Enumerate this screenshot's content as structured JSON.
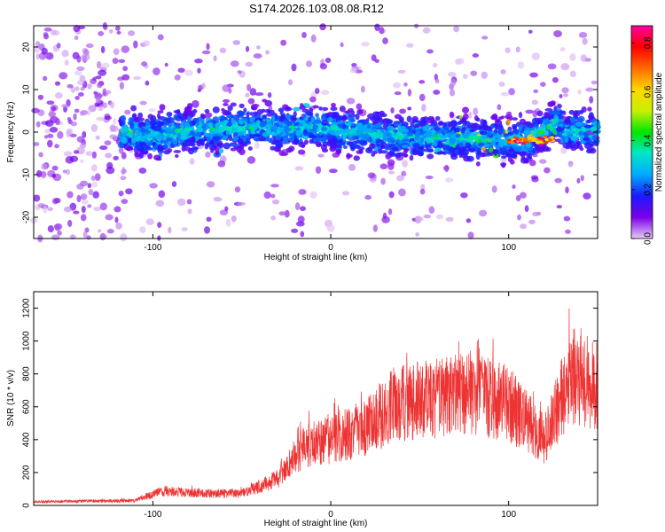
{
  "title": "S174.2026.103.08.08.R12",
  "chart_data": [
    {
      "type": "heatmap",
      "xlabel": "Height of straight line (km)",
      "ylabel": "Frequency (Hz)",
      "xlim": [
        -167,
        150
      ],
      "ylim": [
        -25,
        25
      ],
      "xticks": [
        -100,
        0,
        100
      ],
      "yticks": [
        -20,
        -10,
        0,
        10,
        20
      ],
      "colorbar": {
        "label": "Normalized spectral amplitude",
        "range": [
          0,
          0.87
        ],
        "ticks": [
          0.0,
          0.2,
          0.4,
          0.6,
          0.8
        ],
        "colors": [
          "#e6ccf5",
          "#7a00e8",
          "#1a1aff",
          "#00aaff",
          "#00e6c8",
          "#00e600",
          "#c8f000",
          "#ffd700",
          "#ff6a00",
          "#ff0000",
          "#ff00a0"
        ]
      },
      "description_ridge": [
        {
          "x": -110,
          "f": -1,
          "amp": 0.35
        },
        {
          "x": -60,
          "f": 1,
          "amp": 0.3
        },
        {
          "x": -10,
          "f": 1,
          "amp": 0.35
        },
        {
          "x": 40,
          "f": -1,
          "amp": 0.3
        },
        {
          "x": 110,
          "f": -2,
          "amp": 0.87
        },
        {
          "x": 130,
          "f": 3,
          "amp": 0.4
        }
      ]
    },
    {
      "type": "line",
      "xlabel": "Height of straight line (km)",
      "ylabel": "SNR (10 * v/v)",
      "xlim": [
        -167,
        150
      ],
      "ylim": [
        0,
        1300
      ],
      "xticks": [
        -100,
        0,
        100
      ],
      "yticks": [
        0,
        200,
        400,
        600,
        800,
        1000,
        1200
      ],
      "color": "#ee3333",
      "envelope": {
        "x": [
          -167,
          -110,
          -95,
          -70,
          -50,
          -30,
          -15,
          0,
          20,
          35,
          60,
          80,
          100,
          120,
          135,
          150
        ],
        "y": [
          30,
          40,
          120,
          100,
          100,
          220,
          500,
          560,
          650,
          850,
          900,
          950,
          850,
          550,
          1100,
          1000
        ]
      }
    }
  ]
}
